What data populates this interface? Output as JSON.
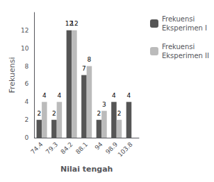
{
  "chart_data": {
    "type": "bar",
    "xlabel": "Nilai tengah",
    "ylabel": "Frekuensi",
    "categories": [
      "74.4",
      "79.3",
      "84.2",
      "88.1",
      "94",
      "98.9",
      "103.8"
    ],
    "series": [
      {
        "name": "Frekuensi\nEksperimen I",
        "color": "#555555",
        "values": [
          2,
          2,
          12,
          7,
          2,
          4,
          4
        ]
      },
      {
        "name": "Frekuensi\nEksperimen II",
        "color": "#bbbbbb",
        "values": [
          4,
          4,
          12,
          8,
          3,
          2,
          0
        ],
        "value_labels": [
          "4",
          "4",
          "12",
          "8",
          "3",
          "2",
          null
        ]
      }
    ],
    "ylim": [
      0,
      14
    ],
    "yticks": [
      0,
      2,
      4,
      6,
      8,
      10,
      12
    ],
    "grid": false,
    "legend": "right",
    "data_labels": true
  }
}
